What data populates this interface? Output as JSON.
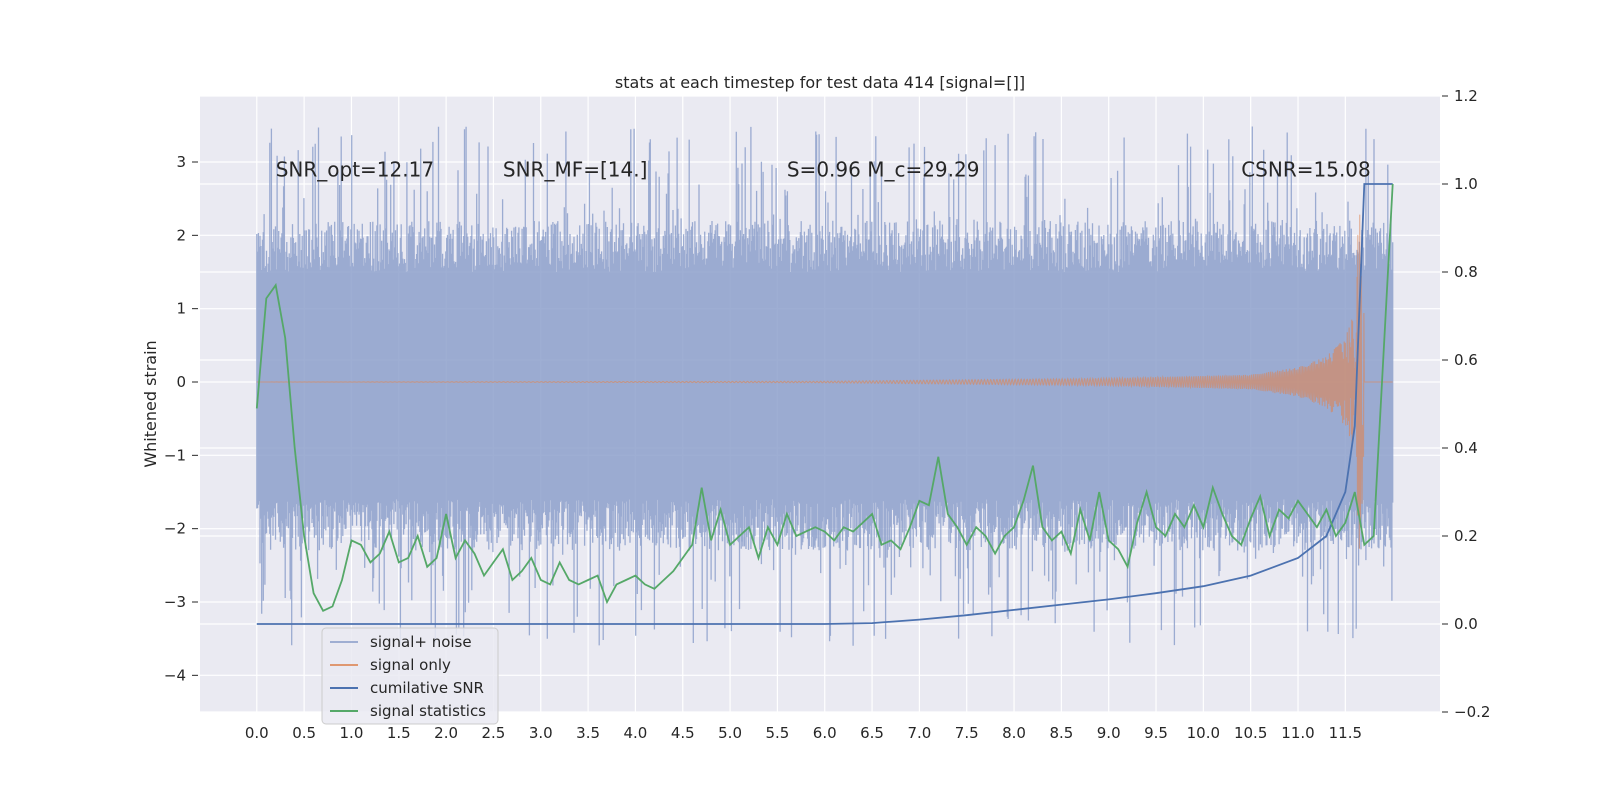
{
  "chart_data": {
    "type": "line",
    "title": "stats at each timestep for test data 414 [signal=[]]",
    "ylabel": "Whitened strain",
    "xlabel": "",
    "xlim": [
      -0.6,
      12.5
    ],
    "ylim": [
      -4.5,
      3.9
    ],
    "y2lim": [
      -0.2,
      1.2
    ],
    "x_ticks": [
      "0.0",
      "0.5",
      "1.0",
      "1.5",
      "2.0",
      "2.5",
      "3.0",
      "3.5",
      "4.0",
      "4.5",
      "5.0",
      "5.5",
      "6.0",
      "6.5",
      "7.0",
      "7.5",
      "8.0",
      "8.5",
      "9.0",
      "9.5",
      "10.0",
      "10.5",
      "11.0",
      "11.5"
    ],
    "y_ticks": [
      -4,
      -3,
      -2,
      -1,
      0,
      1,
      2,
      3
    ],
    "y_tick_labels": [
      "−4",
      "−3",
      "−2",
      "−1",
      "0",
      "1",
      "2",
      "3"
    ],
    "y2_ticks": [
      -0.2,
      0.0,
      0.2,
      0.4,
      0.6,
      0.8,
      1.0,
      1.2
    ],
    "y2_tick_labels": [
      "−0.2",
      "0.0",
      "0.2",
      "0.4",
      "0.6",
      "0.8",
      "1.0",
      "1.2"
    ],
    "grid": true,
    "legend_position": "lower-left",
    "annotations": [
      {
        "text": "SNR_opt=12.17",
        "x": 0.2,
        "y": 2.8
      },
      {
        "text": "SNR_MF=[14.]",
        "x": 2.6,
        "y": 2.8
      },
      {
        "text": "S=0.96   M_c=29.29",
        "x": 5.6,
        "y": 2.8
      },
      {
        "text": "CSNR=15.08",
        "x": 10.4,
        "y": 2.8
      }
    ],
    "series": [
      {
        "name": "signal+ noise",
        "axis": "left",
        "color": "#8da0cb",
        "envelope": {
          "x_start": 0.0,
          "x_end": 12.0,
          "y_min": -3.6,
          "y_max": 3.5,
          "band": [
            -1.6,
            1.5
          ]
        }
      },
      {
        "name": "signal only",
        "axis": "left",
        "color": "#dd8452",
        "x": [
          0,
          6.0,
          9.0,
          10.5,
          11.0,
          11.3,
          11.5,
          11.6,
          11.65,
          11.7,
          12.0
        ],
        "amp": [
          0.0,
          0.01,
          0.05,
          0.1,
          0.2,
          0.35,
          0.6,
          1.0,
          2.6,
          0.8,
          0.0
        ]
      },
      {
        "name": "cumilative SNR",
        "axis": "right",
        "color": "#4c72b0",
        "x": [
          0.0,
          6.0,
          6.5,
          7.0,
          7.5,
          8.0,
          8.5,
          9.0,
          9.5,
          10.0,
          10.5,
          11.0,
          11.3,
          11.5,
          11.6,
          11.7,
          12.0
        ],
        "values": [
          0.0,
          0.0,
          0.002,
          0.01,
          0.02,
          0.032,
          0.044,
          0.056,
          0.07,
          0.086,
          0.11,
          0.15,
          0.2,
          0.3,
          0.45,
          1.0,
          1.0
        ]
      },
      {
        "name": "signal statistics",
        "axis": "right",
        "color": "#55a868",
        "x": [
          0.0,
          0.1,
          0.2,
          0.3,
          0.4,
          0.5,
          0.6,
          0.7,
          0.8,
          0.9,
          1.0,
          1.1,
          1.2,
          1.3,
          1.4,
          1.5,
          1.6,
          1.7,
          1.8,
          1.9,
          2.0,
          2.1,
          2.2,
          2.3,
          2.4,
          2.5,
          2.6,
          2.7,
          2.8,
          2.9,
          3.0,
          3.1,
          3.2,
          3.3,
          3.4,
          3.5,
          3.6,
          3.7,
          3.8,
          3.9,
          4.0,
          4.1,
          4.2,
          4.3,
          4.4,
          4.5,
          4.6,
          4.7,
          4.8,
          4.9,
          5.0,
          5.1,
          5.2,
          5.3,
          5.4,
          5.5,
          5.6,
          5.7,
          5.8,
          5.9,
          6.0,
          6.1,
          6.2,
          6.3,
          6.4,
          6.5,
          6.6,
          6.7,
          6.8,
          6.9,
          7.0,
          7.1,
          7.2,
          7.3,
          7.4,
          7.5,
          7.6,
          7.7,
          7.8,
          7.9,
          8.0,
          8.1,
          8.2,
          8.3,
          8.4,
          8.5,
          8.6,
          8.7,
          8.8,
          8.9,
          9.0,
          9.1,
          9.2,
          9.3,
          9.4,
          9.5,
          9.6,
          9.7,
          9.8,
          9.9,
          10.0,
          10.1,
          10.2,
          10.3,
          10.4,
          10.5,
          10.6,
          10.7,
          10.8,
          10.9,
          11.0,
          11.1,
          11.2,
          11.3,
          11.4,
          11.5,
          11.6,
          11.7,
          11.8,
          11.9,
          12.0
        ],
        "values": [
          0.49,
          0.74,
          0.77,
          0.65,
          0.4,
          0.2,
          0.07,
          0.03,
          0.04,
          0.1,
          0.19,
          0.18,
          0.14,
          0.16,
          0.21,
          0.14,
          0.15,
          0.2,
          0.13,
          0.15,
          0.25,
          0.15,
          0.19,
          0.16,
          0.11,
          0.14,
          0.17,
          0.1,
          0.12,
          0.15,
          0.1,
          0.09,
          0.14,
          0.1,
          0.09,
          0.1,
          0.11,
          0.05,
          0.09,
          0.1,
          0.11,
          0.09,
          0.08,
          0.1,
          0.12,
          0.15,
          0.18,
          0.31,
          0.19,
          0.26,
          0.18,
          0.2,
          0.22,
          0.15,
          0.22,
          0.18,
          0.25,
          0.2,
          0.21,
          0.22,
          0.21,
          0.19,
          0.22,
          0.21,
          0.23,
          0.25,
          0.18,
          0.19,
          0.17,
          0.22,
          0.28,
          0.27,
          0.38,
          0.25,
          0.22,
          0.18,
          0.22,
          0.2,
          0.16,
          0.2,
          0.22,
          0.28,
          0.36,
          0.22,
          0.19,
          0.21,
          0.16,
          0.26,
          0.19,
          0.3,
          0.19,
          0.17,
          0.13,
          0.23,
          0.3,
          0.22,
          0.2,
          0.25,
          0.22,
          0.27,
          0.22,
          0.31,
          0.25,
          0.2,
          0.18,
          0.24,
          0.29,
          0.2,
          0.26,
          0.24,
          0.28,
          0.25,
          0.22,
          0.26,
          0.2,
          0.23,
          0.3,
          0.18,
          0.2,
          0.6,
          1.0
        ]
      }
    ]
  }
}
